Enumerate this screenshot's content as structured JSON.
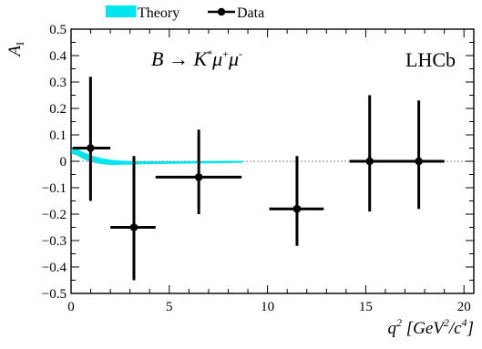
{
  "chart_data": {
    "type": "scatter",
    "title": "",
    "xlabel": {
      "base": "q",
      "sup": "2",
      "unit_open": " [GeV",
      "unit_sup1": "2",
      "unit_mid": "/c",
      "unit_sup2": "4",
      "unit_close": "]"
    },
    "ylabel": {
      "base": "A",
      "sub": "I"
    },
    "xlim": [
      0,
      20.5
    ],
    "ylim": [
      -0.5,
      0.5
    ],
    "xticks": [
      0,
      5,
      10,
      15,
      20
    ],
    "xtick_labels": [
      "0",
      "5",
      "10",
      "15",
      "20"
    ],
    "yticks": [
      -0.5,
      -0.4,
      -0.3,
      -0.2,
      -0.1,
      0,
      0.1,
      0.2,
      0.3,
      0.4,
      0.5
    ],
    "ytick_labels": [
      "−0.5",
      "−0.4",
      "−0.3",
      "−0.2",
      "−0.1",
      "0",
      "0.1",
      "0.2",
      "0.3",
      "0.4",
      "0.5"
    ],
    "legend_position": "top",
    "legend": [
      {
        "label": "Theory",
        "style": "band",
        "color": "#00e5ee"
      },
      {
        "label": "Data",
        "style": "marker-line",
        "color": "#000000"
      }
    ],
    "annotations": {
      "process": {
        "B": "B",
        "arrow": " → ",
        "K": "K",
        "Ksup": "*",
        "mu1": "μ",
        "mu1sup": "+",
        "mu2": "μ",
        "mu2sup": "-"
      },
      "experiment": "LHCb"
    },
    "reference_line": {
      "y": 0,
      "style": "dotted",
      "color": "#888888"
    },
    "series": [
      {
        "name": "Data",
        "color": "#000000",
        "points": [
          {
            "x": 0.99,
            "y": 0.05,
            "xlo": 0.1,
            "xhi": 2.0,
            "ylo": -0.15,
            "yhi": 0.32
          },
          {
            "x": 3.2,
            "y": -0.25,
            "xlo": 2.0,
            "xhi": 4.3,
            "ylo": -0.45,
            "yhi": 0.02
          },
          {
            "x": 6.5,
            "y": -0.06,
            "xlo": 4.3,
            "xhi": 8.68,
            "ylo": -0.2,
            "yhi": 0.12
          },
          {
            "x": 11.5,
            "y": -0.18,
            "xlo": 10.09,
            "xhi": 12.86,
            "ylo": -0.32,
            "yhi": 0.02
          },
          {
            "x": 15.2,
            "y": 0.0,
            "xlo": 14.18,
            "xhi": 16.0,
            "ylo": -0.19,
            "yhi": 0.25
          },
          {
            "x": 17.7,
            "y": 0.0,
            "xlo": 16.0,
            "xhi": 19.0,
            "ylo": -0.18,
            "yhi": 0.23
          }
        ]
      },
      {
        "name": "Theory",
        "color": "#00e5ee",
        "band": [
          {
            "x": 0.05,
            "lo": 0.03,
            "hi": 0.05
          },
          {
            "x": 0.3,
            "lo": 0.025,
            "hi": 0.045
          },
          {
            "x": 0.6,
            "lo": 0.012,
            "hi": 0.032
          },
          {
            "x": 1.0,
            "lo": 0.0,
            "hi": 0.02
          },
          {
            "x": 1.5,
            "lo": -0.008,
            "hi": 0.01
          },
          {
            "x": 2.0,
            "lo": -0.011,
            "hi": 0.003
          },
          {
            "x": 3.0,
            "lo": -0.01,
            "hi": -0.002
          },
          {
            "x": 4.0,
            "lo": -0.008,
            "hi": -0.003
          },
          {
            "x": 6.0,
            "lo": -0.006,
            "hi": -0.002
          },
          {
            "x": 8.0,
            "lo": -0.004,
            "hi": -0.001
          },
          {
            "x": 8.7,
            "lo": -0.003,
            "hi": -0.001
          }
        ]
      }
    ]
  }
}
